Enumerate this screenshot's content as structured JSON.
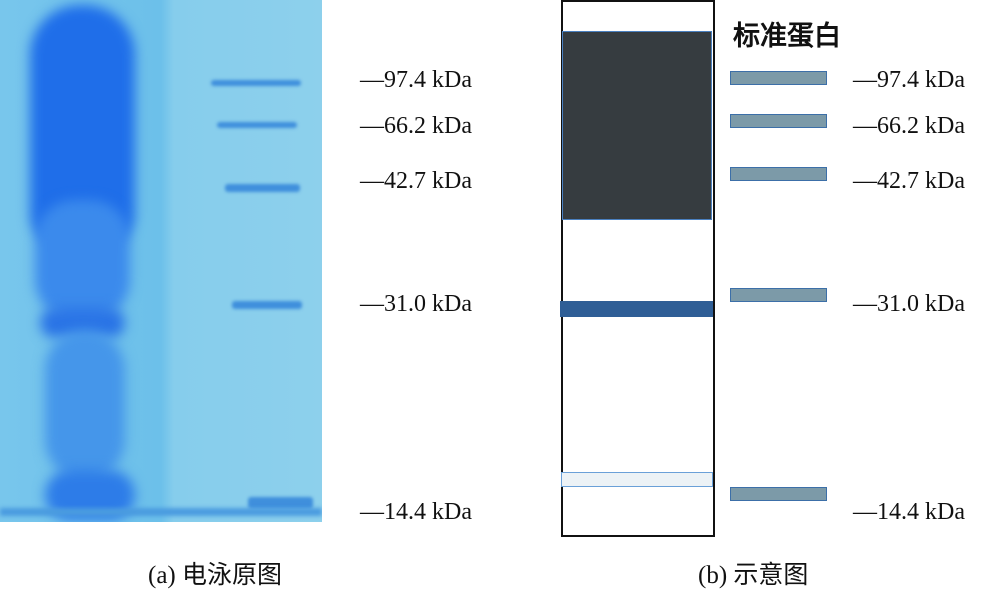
{
  "panel_a": {
    "caption": "(a) 电泳原图",
    "markers": [
      "—97.4 kDa",
      "—66.2 kDa",
      "—42.7 kDa",
      "—31.0 kDa",
      "—14.4 kDa"
    ]
  },
  "panel_b": {
    "caption": "(b) 示意图",
    "title": "标准蛋白",
    "markers": [
      "—97.4 kDa",
      "—66.2 kDa",
      "—42.7 kDa",
      "—31.0 kDa",
      "—14.4 kDa"
    ]
  },
  "colors": {
    "gel_bg": "#78c6ec",
    "sample_lane": "#1e6fe8",
    "dark_block": "#363c40",
    "band_31": "#2f5e96",
    "marker_bar": "#7c9aa8"
  }
}
